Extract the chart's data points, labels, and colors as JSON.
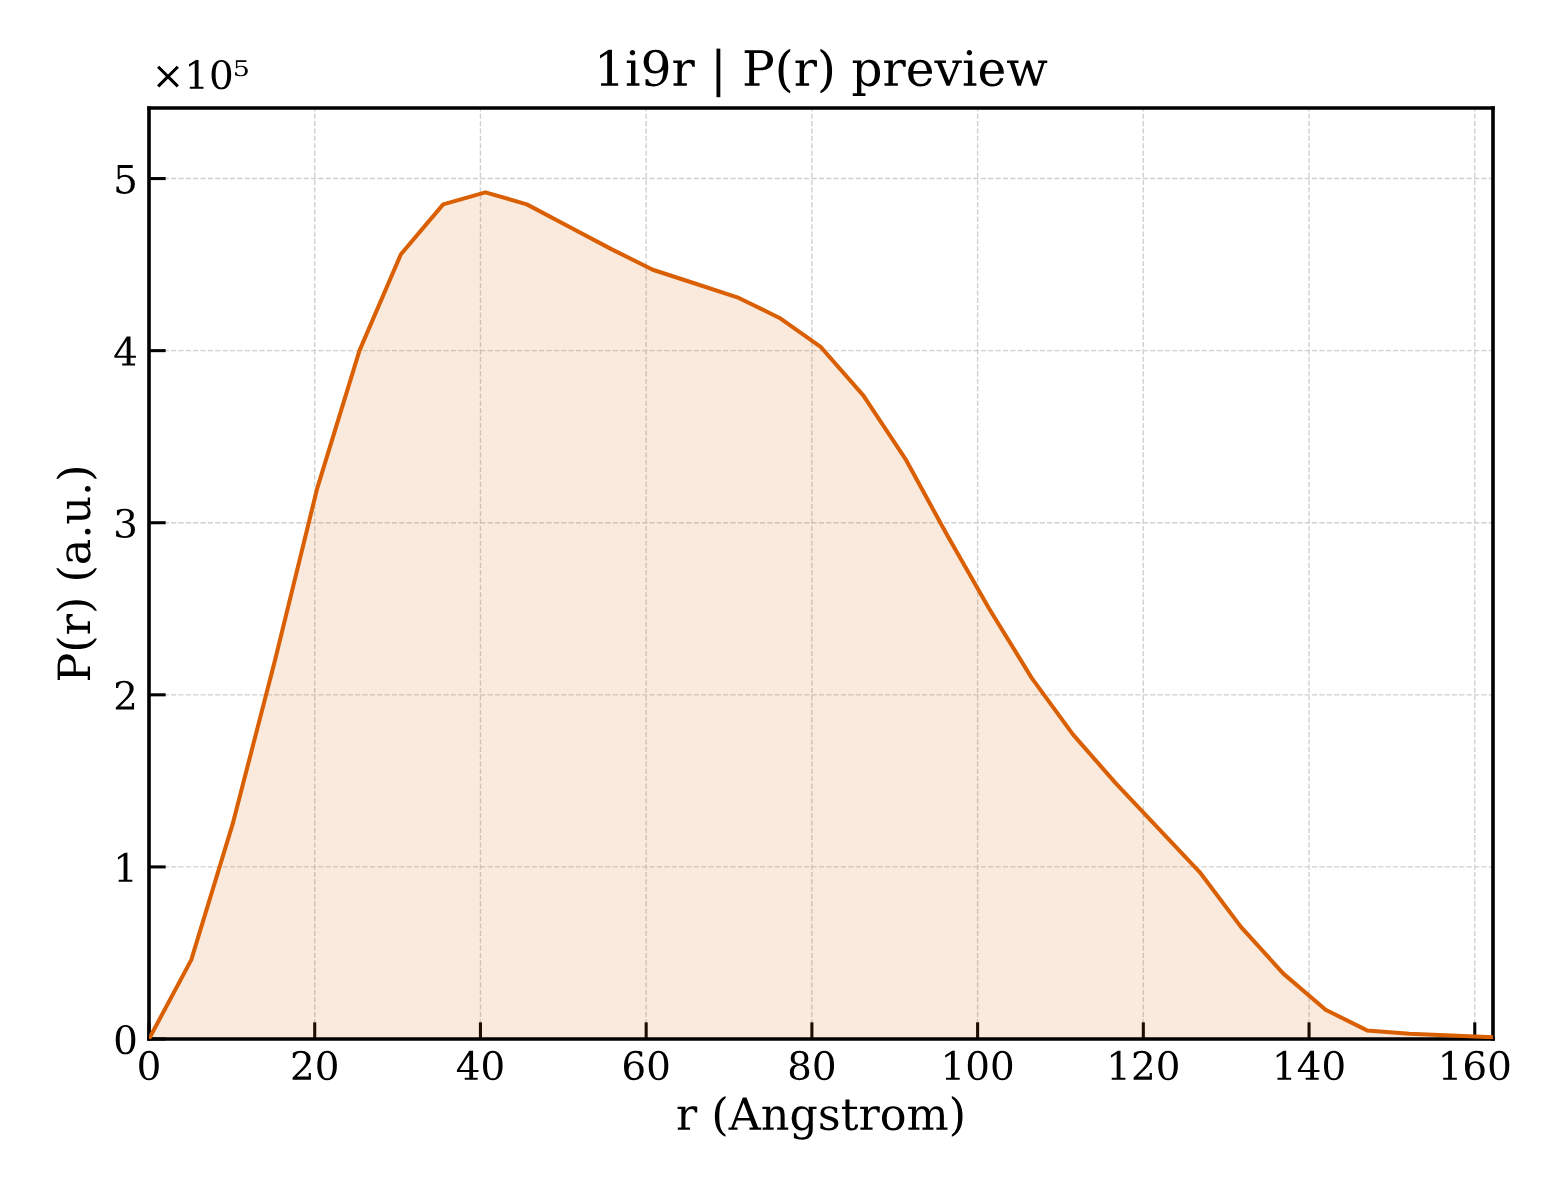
{
  "chart_data": {
    "type": "area",
    "title": "1i9r | P(r) preview",
    "xlabel": "r (Angstrom)",
    "ylabel": "P(r) (a.u.)",
    "annotations": [
      "×10⁵"
    ],
    "x": [
      0,
      5.1,
      10.1,
      15.2,
      20.3,
      25.4,
      30.4,
      35.5,
      40.6,
      45.6,
      50.7,
      55.8,
      60.8,
      65.9,
      71.0,
      76.1,
      81.1,
      86.2,
      91.3,
      96.3,
      101.4,
      106.5,
      111.5,
      116.6,
      121.7,
      126.8,
      131.8,
      136.9,
      142.0,
      147.0,
      152.1,
      157.2,
      162.2
    ],
    "values": [
      0,
      0.46,
      1.25,
      2.2,
      3.2,
      4.0,
      4.56,
      4.85,
      4.92,
      4.85,
      4.72,
      4.59,
      4.47,
      4.39,
      4.31,
      4.19,
      4.02,
      3.74,
      3.37,
      2.93,
      2.5,
      2.1,
      1.77,
      1.49,
      1.23,
      0.97,
      0.65,
      0.38,
      0.17,
      0.05,
      0.03,
      0.02,
      0.01
    ],
    "color": "#d95f02",
    "xlim": [
      0,
      162.2
    ],
    "ylim": [
      0,
      5.41
    ],
    "xticks": [
      0,
      20,
      40,
      60,
      80,
      100,
      120,
      140,
      160
    ],
    "yticks": [
      0,
      1,
      2,
      3,
      4,
      5
    ],
    "grid": true,
    "line_style": "solid"
  }
}
